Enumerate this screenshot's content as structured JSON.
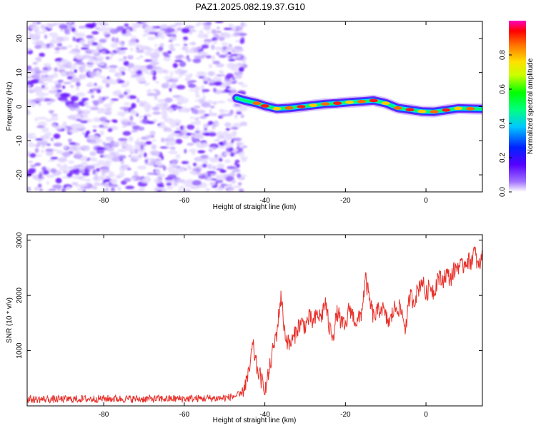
{
  "title": "PAZ1.2025.082.19.37.G10",
  "chart_data": [
    {
      "type": "heatmap",
      "title": "PAZ1.2025.082.19.37.G10",
      "xlabel": "Height of straight line (km)",
      "ylabel": "Frequency (Hz)",
      "xlim": [
        -99,
        14
      ],
      "ylim": [
        -25,
        25
      ],
      "xticks": [
        -80,
        -60,
        -40,
        -20,
        0
      ],
      "yticks": [
        -20,
        -10,
        0,
        10,
        20
      ],
      "colorbar": {
        "label": "Normalized spectral amplitude",
        "range": [
          0,
          1
        ],
        "ticks": [
          0.0,
          0.2,
          0.4,
          0.6,
          0.8
        ],
        "colormap": "rainbow (white, purple, blue, cyan, green, yellow, orange, red, magenta)"
      },
      "noise_region_x": [
        -99,
        -45
      ],
      "signal_ridge": {
        "x": [
          -47,
          -45,
          -42,
          -40,
          -37,
          -34,
          -31,
          -28,
          -25,
          -22,
          -19,
          -16,
          -13,
          -10,
          -7,
          -4,
          -1,
          2,
          5,
          8,
          11,
          14
        ],
        "y": [
          2.5,
          1.8,
          1.0,
          0.2,
          -0.6,
          -0.4,
          0.0,
          0.4,
          0.8,
          1.0,
          1.3,
          1.5,
          1.8,
          1.0,
          -0.4,
          -0.9,
          -1.4,
          -1.5,
          -1.0,
          -0.5,
          -0.6,
          -0.7
        ]
      },
      "grid": false
    },
    {
      "type": "line",
      "xlabel": "Height of straight line (km)",
      "ylabel": "SNR (10 * v/v)",
      "xlim": [
        -99,
        14
      ],
      "ylim": [
        0,
        3100
      ],
      "xticks": [
        -80,
        -60,
        -40,
        -20,
        0
      ],
      "yticks": [
        1000,
        2000,
        3000
      ],
      "series": [
        {
          "color": "#e8302a",
          "x": [
            -99,
            -90,
            -80,
            -70,
            -60,
            -50,
            -46,
            -44,
            -43,
            -42,
            -41,
            -40,
            -39,
            -38,
            -37,
            -36,
            -35,
            -34,
            -33,
            -32,
            -31,
            -30,
            -29,
            -28,
            -27,
            -26,
            -25,
            -24,
            -23,
            -22,
            -21,
            -20,
            -19,
            -18,
            -17,
            -16,
            -15,
            -14,
            -13,
            -12,
            -11,
            -10,
            -9,
            -8,
            -7,
            -6,
            -5,
            -4,
            -3,
            -2,
            -1,
            0,
            1,
            2,
            3,
            4,
            5,
            6,
            7,
            8,
            9,
            10,
            11,
            12,
            13,
            14
          ],
          "y": [
            120,
            120,
            130,
            125,
            130,
            140,
            200,
            550,
            1100,
            700,
            500,
            250,
            600,
            1000,
            1350,
            2000,
            1300,
            1100,
            1200,
            1400,
            1500,
            1450,
            1600,
            1500,
            1650,
            1600,
            1900,
            1400,
            1300,
            1700,
            1500,
            1400,
            1800,
            1600,
            1500,
            1700,
            2300,
            1900,
            1600,
            1700,
            1800,
            1600,
            1500,
            1750,
            1800,
            1700,
            1400,
            2000,
            1900,
            2100,
            2300,
            2000,
            2200,
            2050,
            2350,
            2250,
            2400,
            2300,
            2450,
            2550,
            2500,
            2650,
            2600,
            2800,
            2500,
            2700
          ]
        }
      ],
      "grid": false
    }
  ]
}
